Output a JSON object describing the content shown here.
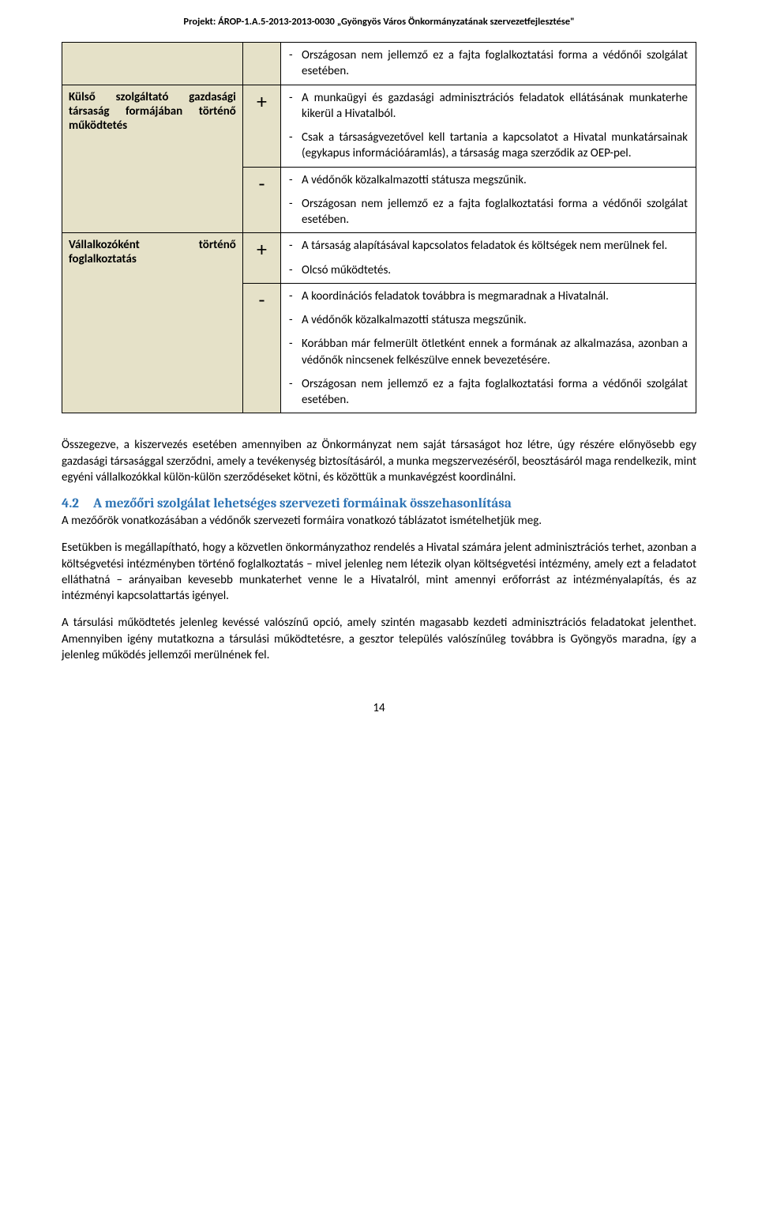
{
  "header": "Projekt: ÁROP-1.A.5-2013-2013-0030 „Gyöngyös Város Önkormányzatának szervezetfejlesztése\"",
  "rows": [
    {
      "left": "",
      "sign": "",
      "items": [
        "Országosan nem jellemző ez a fajta foglalkoztatási forma a védőnői szolgálat esetében."
      ]
    },
    {
      "left": "Külső szolgáltató gazdasági társaság formájában történő működtetés",
      "sign": "+",
      "items": [
        "A munkaügyi és gazdasági adminisztrációs feladatok ellátásának munkaterhe kikerül a Hivatalból.",
        "Csak a társaságvezetővel kell tartania a kapcsolatot a Hivatal munkatársainak (egykapus információáramlás), a társaság maga szerződik az OEP-pel."
      ]
    },
    {
      "left": "",
      "sign": "-",
      "items": [
        "A védőnők közalkalmazotti státusza megszűnik.",
        "Országosan nem jellemző ez a fajta foglalkoztatási forma a védőnői szolgálat esetében."
      ]
    },
    {
      "left": "Vállalkozóként történő foglalkoztatás",
      "sign": "+",
      "items": [
        "A társaság alapításával kapcsolatos feladatok és költségek nem merülnek fel.",
        "Olcsó működtetés."
      ]
    },
    {
      "left": "",
      "sign": "-",
      "items": [
        "A koordinációs feladatok továbbra is megmaradnak a Hivatalnál.",
        "A védőnők közalkalmazotti státusza megszűnik.",
        "Korábban már felmerült ötletként ennek a formának az alkalmazása, azonban a védőnők nincsenek felkészülve ennek bevezetésére.",
        "Országosan nem jellemző ez a fajta foglalkoztatási forma a védőnői szolgálat esetében."
      ]
    }
  ],
  "paragraphs": {
    "p1": "Összegezve, a kiszervezés esetében amennyiben az Önkormányzat nem saját társaságot hoz létre, úgy részére előnyösebb egy gazdasági társasággal szerződni, amely a tevékenység biztosításáról, a munka megszervezéséről, beosztásáról maga rendelkezik, mint egyéni vállalkozókkal külön-külön szerződéseket kötni, és közöttük a munkavégzést koordinálni.",
    "p2": "A mezőőrök vonatkozásában a védőnők szervezeti formáira vonatkozó táblázatot ismételhetjük meg.",
    "p3": "Esetükben is megállapítható, hogy a közvetlen önkormányzathoz rendelés a Hivatal számára jelent adminisztrációs terhet, azonban a költségvetési intézményben történő foglalkoztatás – mivel jelenleg nem létezik olyan költségvetési intézmény, amely ezt a feladatot elláthatná – arányaiban kevesebb munkaterhet venne le a Hivatalról, mint amennyi erőforrást az intézményalapítás, és az intézményi kapcsolattartás igényel.",
    "p4": "A társulási működtetés jelenleg kevéssé valószínű opció, amely szintén magasabb kezdeti adminisztrációs feladatokat jelenthet. Amennyiben igény mutatkozna a társulási működtetésre, a gesztor település valószínűleg továbbra is Gyöngyös maradna, így a jelenleg működés jellemzői merülnének fel."
  },
  "section": {
    "num": "4.2",
    "title": "A mezőőri szolgálat lehetséges szervezeti formáinak összehasonlítása"
  },
  "pageNum": "14"
}
